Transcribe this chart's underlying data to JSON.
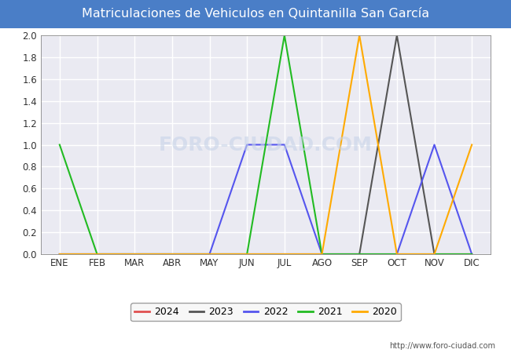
{
  "title": "Matriculaciones de Vehiculos en Quintanilla San García",
  "months": [
    "ENE",
    "FEB",
    "MAR",
    "ABR",
    "MAY",
    "JUN",
    "JUL",
    "AGO",
    "SEP",
    "OCT",
    "NOV",
    "DIC"
  ],
  "series": {
    "2024": [
      0,
      0,
      0,
      0,
      0,
      0,
      0,
      0,
      0,
      0,
      0,
      0
    ],
    "2023": [
      0,
      0,
      0,
      0,
      0,
      0,
      0,
      0,
      0,
      2,
      0,
      0
    ],
    "2022": [
      0,
      0,
      0,
      0,
      0,
      1,
      1,
      0,
      0,
      0,
      1,
      0
    ],
    "2021": [
      1,
      0,
      0,
      0,
      0,
      0,
      2,
      0,
      0,
      0,
      0,
      0
    ],
    "2020": [
      0,
      0,
      0,
      0,
      0,
      0,
      0,
      0,
      2,
      0,
      0,
      1
    ]
  },
  "colors": {
    "2024": "#e05050",
    "2023": "#555555",
    "2022": "#5555ee",
    "2021": "#22bb22",
    "2020": "#ffaa00"
  },
  "ylim": [
    0,
    2.0
  ],
  "yticks": [
    0.0,
    0.2,
    0.4,
    0.6,
    0.8,
    1.0,
    1.2,
    1.4,
    1.6,
    1.8,
    2.0
  ],
  "title_bg_color": "#4a7ec7",
  "title_text_color": "#ffffff",
  "plot_bg_color": "#eaeaf2",
  "outer_bg_color": "#ffffff",
  "grid_color": "#ffffff",
  "watermark_text": "FORO-CIUDAD.COM",
  "url_text": "http://www.foro-ciudad.com",
  "legend_order": [
    "2024",
    "2023",
    "2022",
    "2021",
    "2020"
  ]
}
